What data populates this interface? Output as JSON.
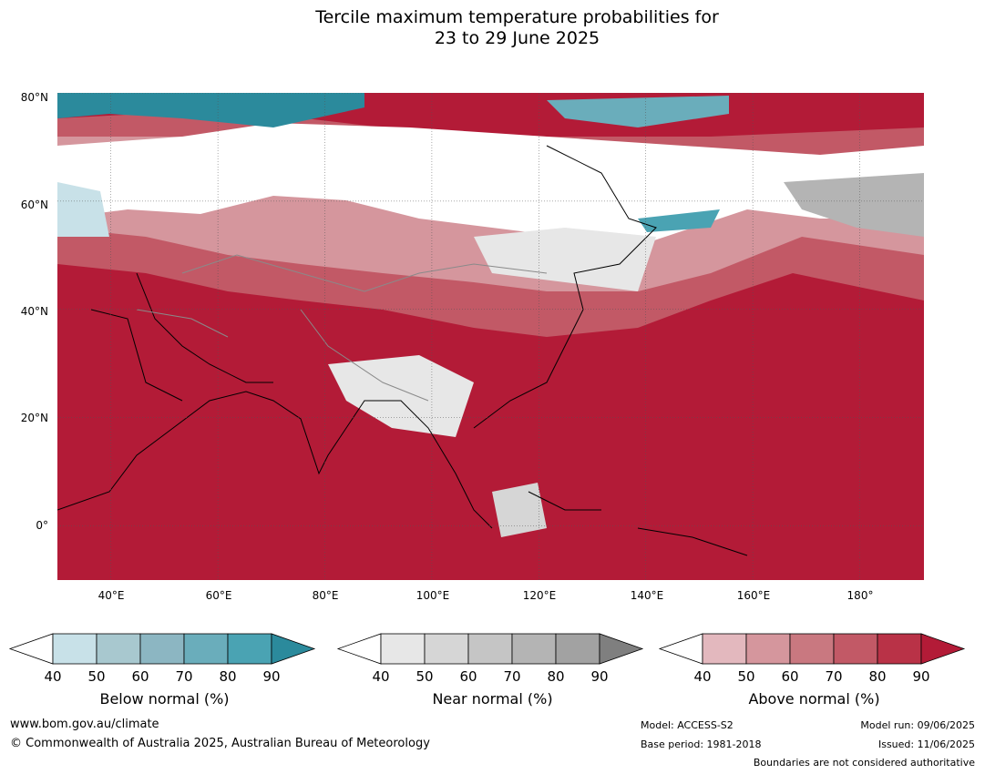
{
  "title": {
    "line1": "Tercile maximum temperature probabilities for",
    "line2": "23 to 29 June 2025"
  },
  "map": {
    "lat_labels": [
      "80°N",
      "60°N",
      "40°N",
      "20°N",
      "0°"
    ],
    "lon_labels": [
      "40°E",
      "60°E",
      "80°E",
      "100°E",
      "120°E",
      "140°E",
      "160°E",
      "180°"
    ],
    "lat_range": [
      -10,
      80
    ],
    "lon_range": [
      30,
      192
    ]
  },
  "colorbars": [
    {
      "name": "below",
      "title": "Below normal (%)",
      "ticks": [
        "40",
        "50",
        "60",
        "70",
        "80",
        "90"
      ],
      "colors": [
        "#c8e1e8",
        "#a8c8cf",
        "#8cb6c2",
        "#6aadbb",
        "#4aa3b3"
      ],
      "extend_color": "#2b8a9c"
    },
    {
      "name": "near",
      "title": "Near normal (%)",
      "ticks": [
        "40",
        "50",
        "60",
        "70",
        "80",
        "90"
      ],
      "colors": [
        "#e7e7e7",
        "#d6d6d6",
        "#c5c5c5",
        "#b4b4b4",
        "#a2a2a2"
      ],
      "extend_color": "#7f7f7f"
    },
    {
      "name": "above",
      "title": "Above normal (%)",
      "ticks": [
        "40",
        "50",
        "60",
        "70",
        "80",
        "90"
      ],
      "colors": [
        "#e3b8be",
        "#d5969d",
        "#c97880",
        "#c25966",
        "#b93247"
      ],
      "extend_color": "#b31b37"
    }
  ],
  "footer": {
    "website": "www.bom.gov.au/climate",
    "copyright": "© Commonwealth of Australia 2025, Australian Bureau of Meteorology",
    "model": "Model: ACCESS-S2",
    "base_period": "Base period: 1981-2018",
    "model_run": "Model run: 09/06/2025",
    "issued": "Issued: 11/06/2025",
    "boundaries_note": "Boundaries are not considered authoritative"
  }
}
